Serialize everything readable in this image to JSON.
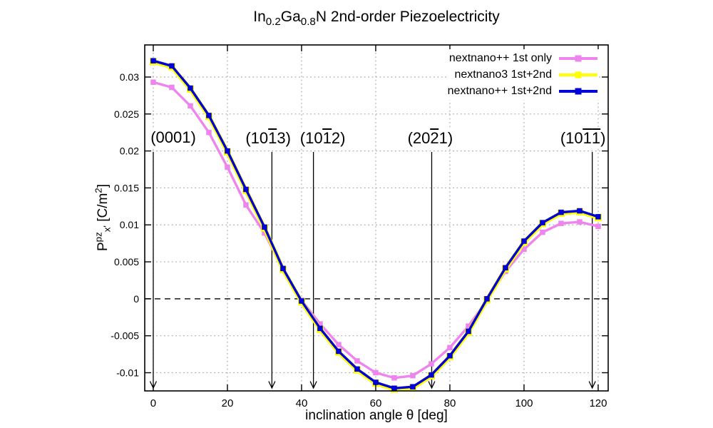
{
  "title": {
    "el1": "In",
    "sub1": "0.2",
    "el2": "Ga",
    "sub2": "0.8",
    "rest": "N 2nd-order Piezoelectricity"
  },
  "axes": {
    "x_label": "inclination angle θ [deg]",
    "y_label": {
      "base": "P",
      "sup": "pz",
      "sub": "x'",
      "unit_pre": " [C/m",
      "unit_sup": "2",
      "unit_post": "]"
    },
    "x_ticks": [
      0,
      20,
      40,
      60,
      80,
      100,
      120
    ],
    "y_ticks": [
      0.03,
      0.025,
      0.02,
      0.015,
      0.01,
      0.005,
      0,
      -0.005,
      -0.01
    ]
  },
  "legend": {
    "entries": [
      {
        "label": "nextnano++ 1st only",
        "color": "#ee84ee"
      },
      {
        "label": "nextnano3 1st+2nd",
        "color": "#ffff00"
      },
      {
        "label": "nextnano++ 1st+2nd",
        "color": "#0000d8"
      }
    ]
  },
  "colors": {
    "violet": "#ee84ee",
    "yellow": "#ffff00",
    "blue": "#0000d8",
    "grid": "#ababab",
    "zero_line": "#1a1a1a",
    "axis": "#000000"
  },
  "chart_data": {
    "type": "line",
    "title": "In0.2Ga0.8N 2nd-order Piezoelectricity",
    "xlabel": "inclination angle θ [deg]",
    "ylabel": "Ppz_x' [C/m2]",
    "xlim": [
      -2.3,
      122.7
    ],
    "ylim": [
      -0.01246,
      0.03434
    ],
    "grid": true,
    "legend_position": "top-right",
    "x": [
      0,
      5,
      10,
      15,
      20,
      25,
      30,
      35,
      40,
      45,
      50,
      55,
      60,
      65,
      70,
      75,
      80,
      85,
      90,
      95,
      100,
      105,
      110,
      115,
      120
    ],
    "series": [
      {
        "name": "nextnano++ 1st only",
        "color": "#ee84ee",
        "marker": "square",
        "values": [
          0.0293,
          0.0286,
          0.0261,
          0.0225,
          0.0178,
          0.0127,
          0.0089,
          0.0039,
          -0.0002,
          -0.0034,
          -0.0062,
          -0.0084,
          -0.01,
          -0.0107,
          -0.0104,
          -0.0088,
          -0.0066,
          -0.0037,
          -0.0002,
          0.0037,
          0.0067,
          0.009,
          0.0102,
          0.0104,
          0.0098
        ]
      },
      {
        "name": "nextnano3 1st+2nd",
        "color": "#ffff00",
        "marker": "square",
        "values": [
          0.0322,
          0.0315,
          0.0285,
          0.0248,
          0.02,
          0.0148,
          0.0097,
          0.0041,
          -0.0003,
          -0.004,
          -0.0071,
          -0.0095,
          -0.0113,
          -0.0121,
          -0.0119,
          -0.0103,
          -0.0077,
          -0.0044,
          0.0,
          0.0042,
          0.0078,
          0.0103,
          0.0117,
          0.0119,
          0.0111
        ]
      },
      {
        "name": "nextnano++ 1st+2nd",
        "color": "#0000d8",
        "marker": "square",
        "values": [
          0.0322,
          0.0315,
          0.0285,
          0.0248,
          0.02,
          0.0148,
          0.0097,
          0.0041,
          -0.0003,
          -0.004,
          -0.0071,
          -0.0095,
          -0.0113,
          -0.0121,
          -0.0119,
          -0.0103,
          -0.0077,
          -0.0044,
          0.0,
          0.0042,
          0.0078,
          0.0103,
          0.0117,
          0.0119,
          0.0111
        ]
      }
    ],
    "annotations": [
      {
        "parts": [
          {
            "t": "(0001)"
          }
        ],
        "arrow_x": 0,
        "label_x": 5.4
      },
      {
        "parts": [
          {
            "t": "(10"
          },
          {
            "t": "1",
            "bar": true
          },
          {
            "t": "3)"
          }
        ],
        "arrow_x": 32.0,
        "label_x": 31.0
      },
      {
        "parts": [
          {
            "t": "(10"
          },
          {
            "t": "1",
            "bar": true
          },
          {
            "t": "2)"
          }
        ],
        "arrow_x": 43.2,
        "label_x": 45.7
      },
      {
        "parts": [
          {
            "t": "(20"
          },
          {
            "t": "2",
            "bar": true
          },
          {
            "t": "1)"
          }
        ],
        "arrow_x": 75.1,
        "label_x": 74.7
      },
      {
        "parts": [
          {
            "t": "(10"
          },
          {
            "t": "1",
            "bar": true
          },
          {
            "t": "1",
            "bar": true
          },
          {
            "t": ")"
          }
        ],
        "arrow_x": 118.4,
        "label_x": 115.9
      }
    ]
  }
}
